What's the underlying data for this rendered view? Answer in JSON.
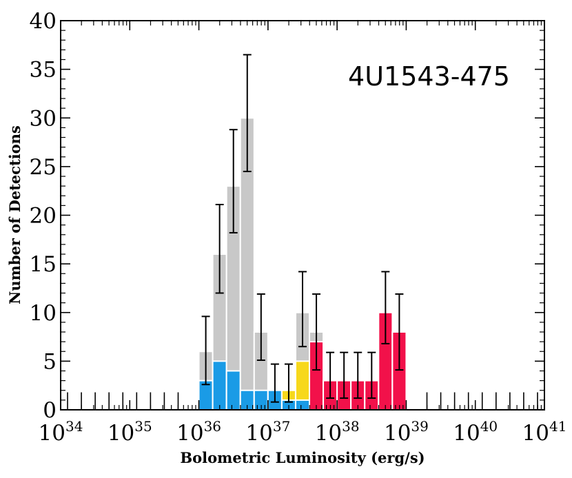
{
  "chart_data": {
    "type": "bar",
    "title": "",
    "annotation": "4U1543-475",
    "xlabel": "Bolometric Luminosity (erg/s)",
    "ylabel": "Number of Detections",
    "x_scale": "log",
    "xlim": [
      1e+34,
      1e+41
    ],
    "ylim": [
      0,
      40
    ],
    "x_tick_labels": [
      {
        "base": "10",
        "exp": "34"
      },
      {
        "base": "10",
        "exp": "35"
      },
      {
        "base": "10",
        "exp": "36"
      },
      {
        "base": "10",
        "exp": "37"
      },
      {
        "base": "10",
        "exp": "38"
      },
      {
        "base": "10",
        "exp": "39"
      },
      {
        "base": "10",
        "exp": "40"
      },
      {
        "base": "10",
        "exp": "41"
      }
    ],
    "y_ticks": [
      0,
      5,
      10,
      15,
      20,
      25,
      30,
      35,
      40
    ],
    "bin_width_dex": 0.2,
    "bins_log_lower_edge": [
      36.0,
      36.2,
      36.4,
      36.6,
      36.8,
      37.0,
      37.2,
      37.4,
      37.6,
      37.8,
      38.0,
      38.2,
      38.4,
      38.6,
      38.8,
      39.0
    ],
    "series": [
      {
        "color": "#1a9be6",
        "values": [
          3,
          5,
          4,
          2,
          2,
          2,
          1,
          1,
          0,
          0,
          0,
          0,
          0,
          0,
          0,
          0
        ]
      },
      {
        "color": "#f7d81c",
        "values": [
          0,
          0,
          0,
          0,
          0,
          0,
          1,
          4,
          0,
          0,
          0,
          0,
          0,
          0,
          0,
          0
        ]
      },
      {
        "color": "#f2114a",
        "values": [
          0,
          0,
          0,
          0,
          0,
          0,
          0,
          0,
          7,
          3,
          3,
          3,
          3,
          10,
          8,
          0
        ]
      }
    ],
    "total": {
      "color": "#c8c8c8",
      "values": [
        6,
        16,
        23,
        30,
        8,
        2,
        2,
        10,
        8,
        3,
        3,
        3,
        3,
        10,
        8,
        0
      ]
    },
    "error_bars": [
      {
        "bin": 36.0,
        "low": 2.6,
        "high": 9.6
      },
      {
        "bin": 36.2,
        "low": 12.0,
        "high": 21.1
      },
      {
        "bin": 36.4,
        "low": 18.2,
        "high": 28.8
      },
      {
        "bin": 36.6,
        "low": 24.5,
        "high": 36.5
      },
      {
        "bin": 36.8,
        "low": 5.1,
        "high": 11.9
      },
      {
        "bin": 37.0,
        "low": 0.8,
        "high": 4.7
      },
      {
        "bin": 37.2,
        "low": 0.8,
        "high": 4.7
      },
      {
        "bin": 37.4,
        "low": 6.5,
        "high": 14.2
      },
      {
        "bin": 37.6,
        "low": 4.1,
        "high": 11.9
      },
      {
        "bin": 37.8,
        "low": 1.2,
        "high": 5.9
      },
      {
        "bin": 38.0,
        "low": 1.2,
        "high": 5.9
      },
      {
        "bin": 38.2,
        "low": 1.2,
        "high": 5.9
      },
      {
        "bin": 38.4,
        "low": 1.2,
        "high": 5.9
      },
      {
        "bin": 38.6,
        "low": 6.8,
        "high": 14.2
      },
      {
        "bin": 38.8,
        "low": 4.1,
        "high": 11.9
      }
    ],
    "upper_limit_markers_log": [
      34.1,
      34.3,
      34.5,
      34.7,
      34.9,
      35.1,
      35.3,
      35.5,
      35.7,
      39.3,
      39.5,
      39.7,
      39.9,
      40.1,
      40.3,
      40.5,
      40.7,
      40.9
    ],
    "upper_limit_height": 1.8,
    "grid": false,
    "legend": "none"
  }
}
